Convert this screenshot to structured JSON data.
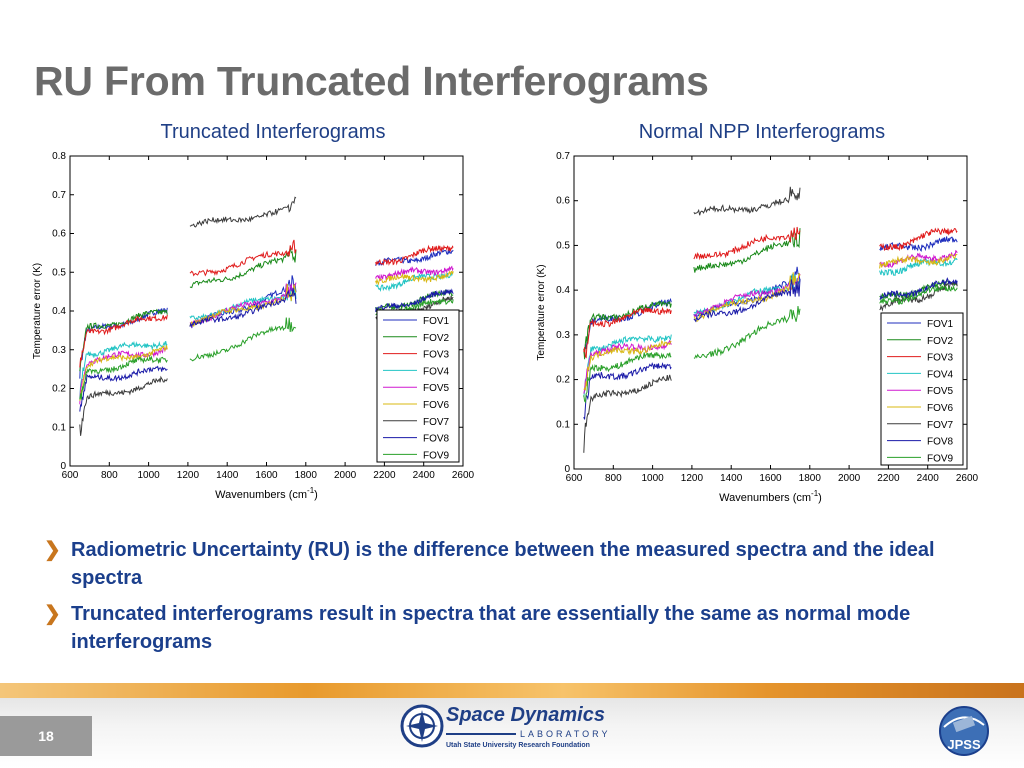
{
  "slide": {
    "title": "RU From Truncated Interferograms",
    "page_number": "18",
    "bullets": [
      "Radiometric Uncertainty (RU) is the difference between the measured spectra and the ideal spectra",
      "Truncated interferograms result in spectra that are essentially the same as normal mode interferograms"
    ],
    "logo": {
      "name": "Space Dynamics",
      "lab": "LABORATORY",
      "subtitle": "Utah State University Research Foundation",
      "badge_text": "JPSS"
    }
  },
  "colors": {
    "title": "#6b6b6b",
    "caption": "#1f3f86",
    "bullet_text": "#1b3f8c",
    "bullet_mark": "#c8761e"
  },
  "chart_data": [
    {
      "type": "line",
      "caption": "Truncated Interferograms",
      "xlabel": "Wavenumbers (cm",
      "xlabel_sup": "-1",
      "xlabel_end": ")",
      "ylabel": "Temperature error (K)",
      "xlim": [
        600,
        2600
      ],
      "ylim": [
        0,
        0.8
      ],
      "xticks": [
        "600",
        "800",
        "1000",
        "1200",
        "1400",
        "1600",
        "1800",
        "2000",
        "2200",
        "2400",
        "2600"
      ],
      "yticks": [
        "0",
        "0.1",
        "0.2",
        "0.3",
        "0.4",
        "0.5",
        "0.6",
        "0.7",
        "0.8"
      ],
      "legend_position": "bottom-right",
      "segments": [
        {
          "x0": 650,
          "x1": 1095
        },
        {
          "x0": 1210,
          "x1": 1750
        },
        {
          "x0": 2155,
          "x1": 2550
        }
      ],
      "series": [
        {
          "name": "FOV1",
          "color": "#1f2ebd",
          "levels": [
            [
              0.34,
              0.4
            ],
            [
              0.36,
              0.46
            ],
            [
              0.52,
              0.55
            ]
          ]
        },
        {
          "name": "FOV2",
          "color": "#1a8a1a",
          "levels": [
            [
              0.35,
              0.4
            ],
            [
              0.46,
              0.54
            ],
            [
              0.4,
              0.45
            ]
          ]
        },
        {
          "name": "FOV3",
          "color": "#e01b1b",
          "levels": [
            [
              0.34,
              0.39
            ],
            [
              0.49,
              0.56
            ],
            [
              0.52,
              0.57
            ]
          ]
        },
        {
          "name": "FOV4",
          "color": "#22c4c4",
          "levels": [
            [
              0.29,
              0.32
            ],
            [
              0.38,
              0.45
            ],
            [
              0.46,
              0.5
            ]
          ]
        },
        {
          "name": "FOV5",
          "color": "#d018d0",
          "levels": [
            [
              0.27,
              0.3
            ],
            [
              0.37,
              0.45
            ],
            [
              0.49,
              0.51
            ]
          ]
        },
        {
          "name": "FOV6",
          "color": "#d8b812",
          "levels": [
            [
              0.26,
              0.3
            ],
            [
              0.37,
              0.44
            ],
            [
              0.48,
              0.49
            ]
          ]
        },
        {
          "name": "FOV7",
          "color": "#3c3c3c",
          "levels": [
            [
              0.17,
              0.22
            ],
            [
              0.62,
              0.66
            ],
            [
              0.38,
              0.43
            ]
          ]
        },
        {
          "name": "FOV8",
          "color": "#1a1aa8",
          "levels": [
            [
              0.22,
              0.25
            ],
            [
              0.36,
              0.43
            ],
            [
              0.4,
              0.45
            ]
          ]
        },
        {
          "name": "FOV9",
          "color": "#2aa02a",
          "levels": [
            [
              0.24,
              0.28
            ],
            [
              0.27,
              0.37
            ],
            [
              0.39,
              0.43
            ]
          ]
        }
      ]
    },
    {
      "type": "line",
      "caption": "Normal NPP Interferograms",
      "xlabel": "Wavenumbers (cm",
      "xlabel_sup": "-1",
      "xlabel_end": ")",
      "ylabel": "Temperature error (K)",
      "xlim": [
        600,
        2600
      ],
      "ylim": [
        0,
        0.7
      ],
      "xticks": [
        "600",
        "800",
        "1000",
        "1200",
        "1400",
        "1600",
        "1800",
        "2000",
        "2200",
        "2400",
        "2600"
      ],
      "yticks": [
        "0",
        "0.1",
        "0.2",
        "0.3",
        "0.4",
        "0.5",
        "0.6",
        "0.7"
      ],
      "legend_position": "bottom-right",
      "segments": [
        {
          "x0": 650,
          "x1": 1095
        },
        {
          "x0": 1210,
          "x1": 1750
        },
        {
          "x0": 2155,
          "x1": 2550
        }
      ],
      "series": [
        {
          "name": "FOV1",
          "color": "#1f2ebd",
          "levels": [
            [
              0.32,
              0.37
            ],
            [
              0.34,
              0.42
            ],
            [
              0.49,
              0.51
            ]
          ]
        },
        {
          "name": "FOV2",
          "color": "#1a8a1a",
          "levels": [
            [
              0.33,
              0.37
            ],
            [
              0.44,
              0.51
            ],
            [
              0.38,
              0.42
            ]
          ]
        },
        {
          "name": "FOV3",
          "color": "#e01b1b",
          "levels": [
            [
              0.32,
              0.36
            ],
            [
              0.47,
              0.53
            ],
            [
              0.49,
              0.54
            ]
          ]
        },
        {
          "name": "FOV4",
          "color": "#22c4c4",
          "levels": [
            [
              0.27,
              0.3
            ],
            [
              0.35,
              0.42
            ],
            [
              0.44,
              0.47
            ]
          ]
        },
        {
          "name": "FOV5",
          "color": "#d018d0",
          "levels": [
            [
              0.26,
              0.28
            ],
            [
              0.35,
              0.42
            ],
            [
              0.46,
              0.48
            ]
          ]
        },
        {
          "name": "FOV6",
          "color": "#d8b812",
          "levels": [
            [
              0.25,
              0.28
            ],
            [
              0.34,
              0.41
            ],
            [
              0.46,
              0.47
            ]
          ]
        },
        {
          "name": "FOV7",
          "color": "#3c3c3c",
          "levels": [
            [
              0.15,
              0.2
            ],
            [
              0.57,
              0.6
            ],
            [
              0.36,
              0.41
            ]
          ]
        },
        {
          "name": "FOV8",
          "color": "#1a1aa8",
          "levels": [
            [
              0.2,
              0.23
            ],
            [
              0.33,
              0.4
            ],
            [
              0.38,
              0.42
            ]
          ]
        },
        {
          "name": "FOV9",
          "color": "#2aa02a",
          "levels": [
            [
              0.22,
              0.26
            ],
            [
              0.24,
              0.35
            ],
            [
              0.37,
              0.41
            ]
          ]
        }
      ]
    }
  ]
}
